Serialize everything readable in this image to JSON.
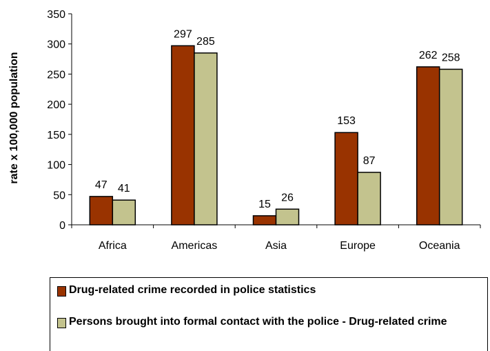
{
  "chart_data": {
    "type": "bar",
    "categories": [
      "Africa",
      "Americas",
      "Asia",
      "Europe",
      "Oceania"
    ],
    "series": [
      {
        "name": "Drug-related crime recorded in police statistics",
        "values": [
          47,
          297,
          15,
          153,
          262
        ],
        "color": "#993300"
      },
      {
        "name": "Persons brought into formal contact with the police - Drug-related crime",
        "values": [
          41,
          285,
          26,
          87,
          258
        ],
        "color": "#c3c38e"
      }
    ],
    "ylabel": "rate x 100,000 population",
    "ylim": [
      0,
      350
    ],
    "yticks": [
      0,
      50,
      100,
      150,
      200,
      250,
      300,
      350
    ],
    "grid": false,
    "legend_position": "bottom"
  }
}
